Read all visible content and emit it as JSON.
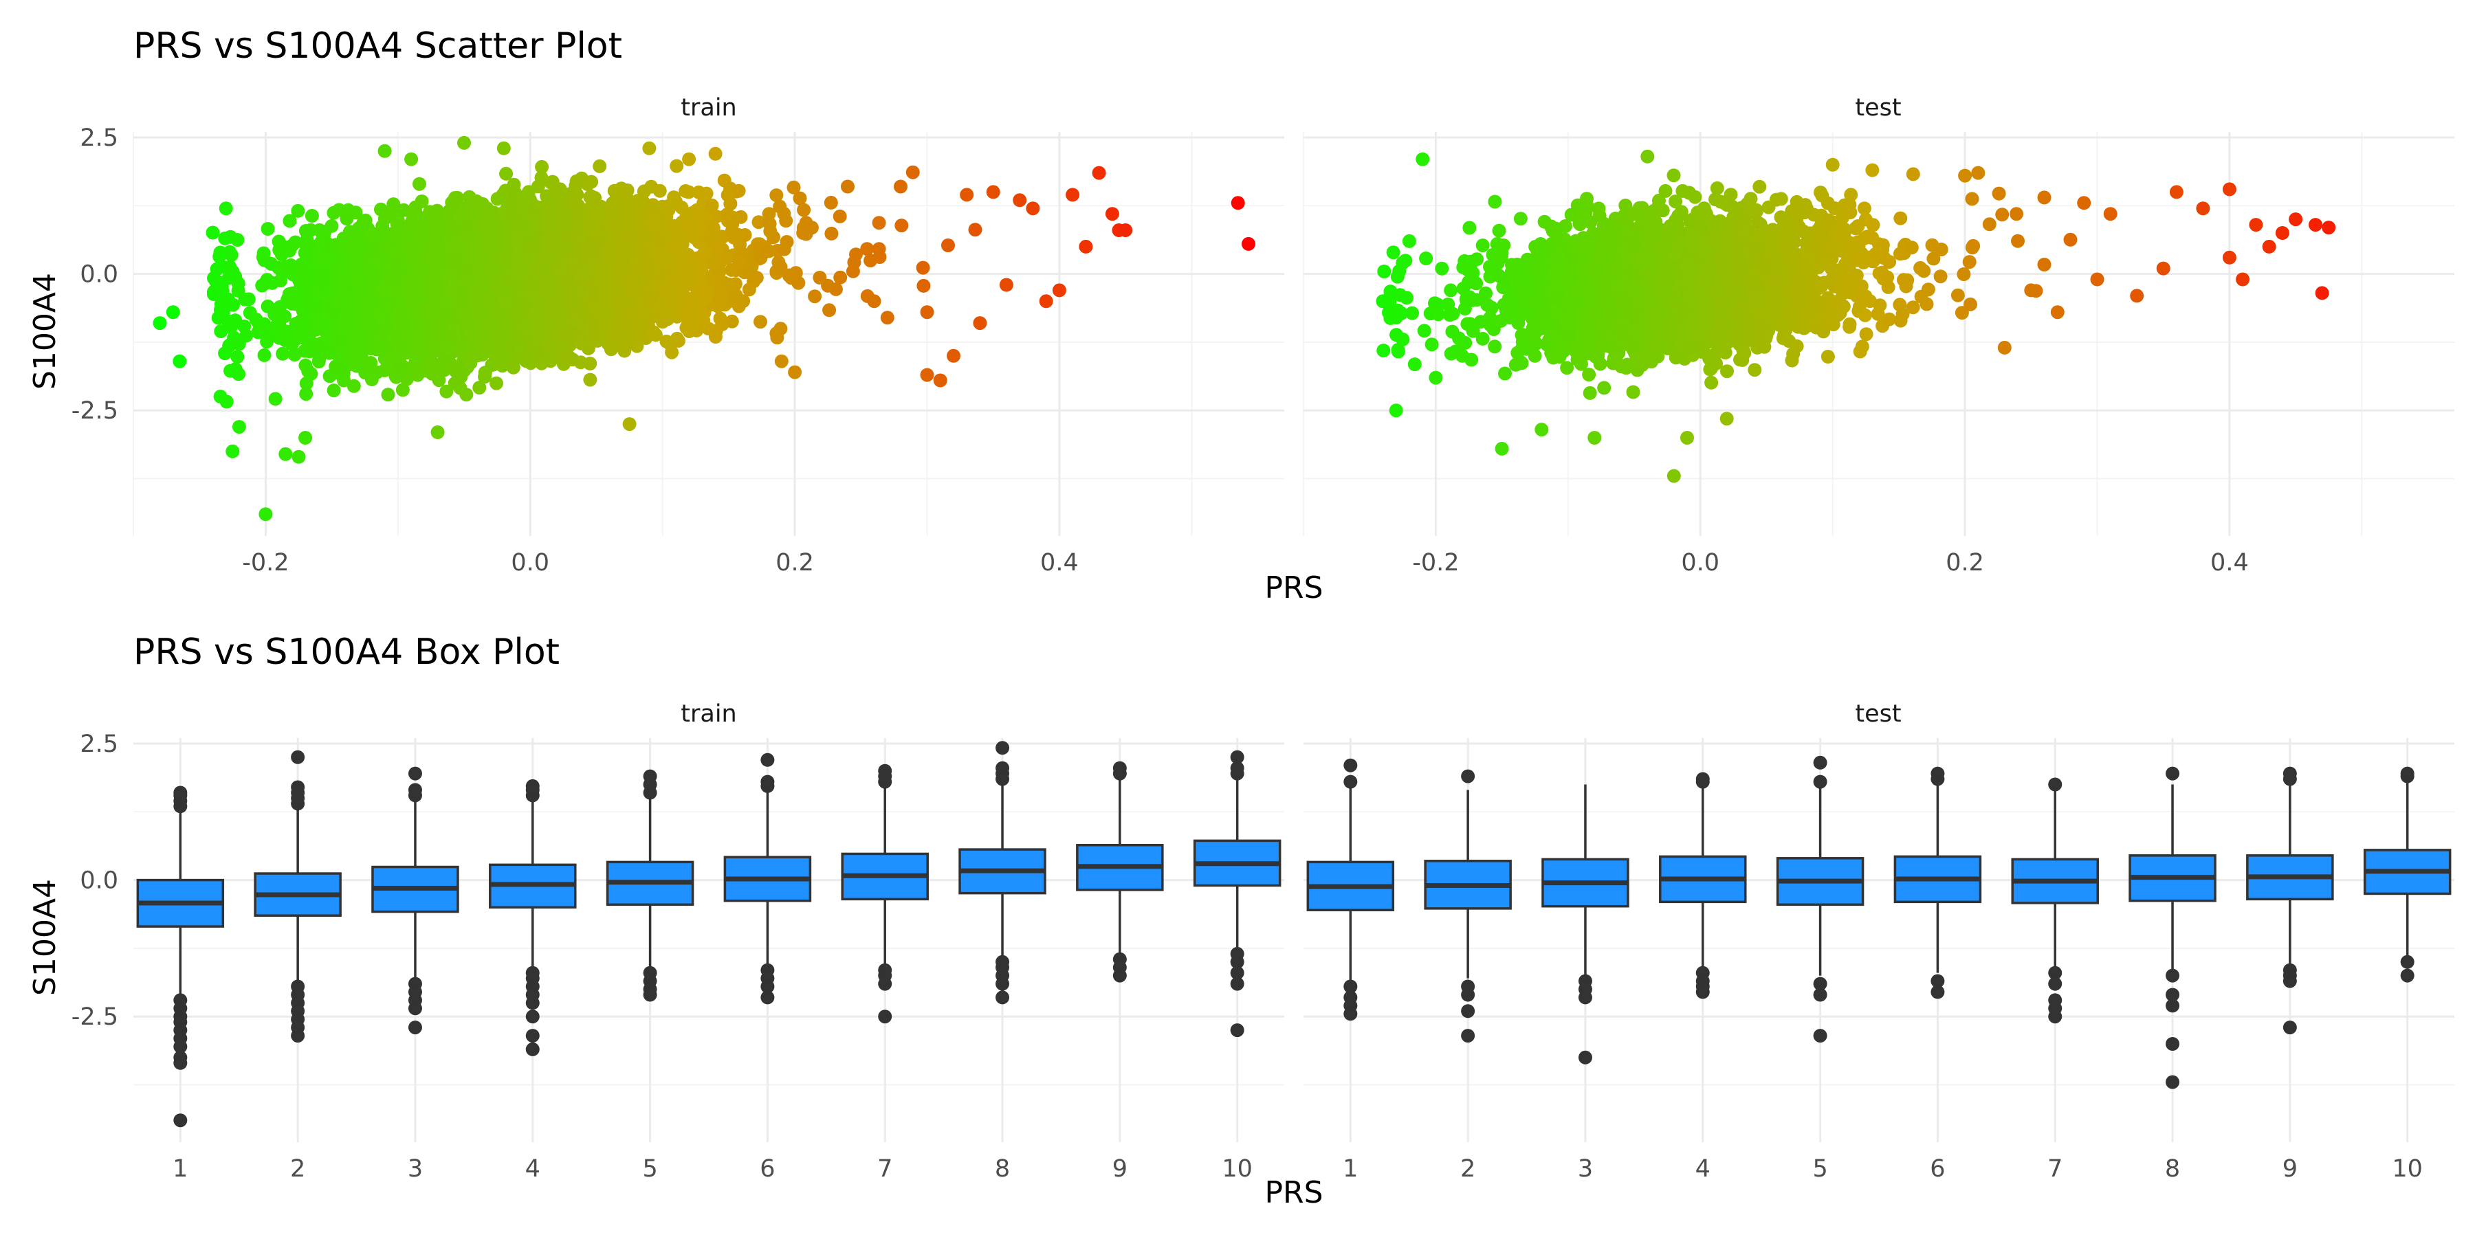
{
  "chart_data": [
    {
      "type": "scatter",
      "title": "PRS vs S100A4 Scatter Plot",
      "xlabel": "PRS",
      "ylabel": "S100A4",
      "facets": [
        {
          "name": "train",
          "xlim": [
            -0.3,
            0.57
          ],
          "ylim": [
            -4.8,
            2.6
          ],
          "xticks": [
            -0.2,
            0.0,
            0.2,
            0.4
          ],
          "xtick_labels": [
            "-0.2",
            "0.0",
            "0.2",
            "0.4"
          ],
          "yticks": [
            2.5,
            0.0,
            -2.5
          ],
          "ytick_labels": [
            "2.5",
            "0.0",
            "-2.5"
          ],
          "cloud": {
            "x_center": -0.02,
            "x_spread": 0.075,
            "y_base": -0.15,
            "slope": 2.2,
            "y_spread": 0.6,
            "count": 6500
          },
          "points": [
            {
              "x": -0.28,
              "y": -0.9
            },
            {
              "x": -0.27,
              "y": -0.7
            },
            {
              "x": -0.265,
              "y": -1.6
            },
            {
              "x": -0.23,
              "y": 1.2
            },
            {
              "x": -0.22,
              "y": -2.8
            },
            {
              "x": -0.225,
              "y": -3.25
            },
            {
              "x": -0.2,
              "y": -4.4
            },
            {
              "x": -0.185,
              "y": -3.3
            },
            {
              "x": -0.175,
              "y": -3.35
            },
            {
              "x": -0.17,
              "y": -3.0
            },
            {
              "x": -0.11,
              "y": 2.25
            },
            {
              "x": -0.09,
              "y": 2.1
            },
            {
              "x": -0.07,
              "y": -2.9
            },
            {
              "x": -0.05,
              "y": 2.4
            },
            {
              "x": -0.02,
              "y": 2.3
            },
            {
              "x": 0.075,
              "y": -2.75
            },
            {
              "x": 0.09,
              "y": 2.3
            },
            {
              "x": 0.12,
              "y": 2.1
            },
            {
              "x": 0.14,
              "y": 2.2
            },
            {
              "x": 0.19,
              "y": -1.6
            },
            {
              "x": 0.2,
              "y": -1.8
            },
            {
              "x": 0.3,
              "y": -1.85
            },
            {
              "x": 0.31,
              "y": -1.95
            },
            {
              "x": 0.32,
              "y": -1.5
            },
            {
              "x": 0.24,
              "y": 1.6
            },
            {
              "x": 0.28,
              "y": 1.6
            },
            {
              "x": 0.33,
              "y": 1.45
            },
            {
              "x": 0.35,
              "y": 1.5
            },
            {
              "x": 0.37,
              "y": 1.35
            },
            {
              "x": 0.38,
              "y": 1.2
            },
            {
              "x": 0.41,
              "y": 1.45
            },
            {
              "x": 0.43,
              "y": 1.85
            },
            {
              "x": 0.44,
              "y": 1.1
            },
            {
              "x": 0.445,
              "y": 0.8
            },
            {
              "x": 0.45,
              "y": 0.8
            },
            {
              "x": 0.42,
              "y": 0.5
            },
            {
              "x": 0.4,
              "y": -0.3
            },
            {
              "x": 0.39,
              "y": -0.5
            },
            {
              "x": 0.36,
              "y": -0.2
            },
            {
              "x": 0.34,
              "y": -0.9
            },
            {
              "x": 0.3,
              "y": -0.7
            },
            {
              "x": 0.27,
              "y": -0.8
            },
            {
              "x": 0.26,
              "y": -0.5
            },
            {
              "x": 0.535,
              "y": 1.3
            },
            {
              "x": 0.543,
              "y": 0.55
            }
          ]
        },
        {
          "name": "test",
          "xlim": [
            -0.3,
            0.57
          ],
          "ylim": [
            -4.8,
            2.6
          ],
          "xticks": [
            -0.2,
            0.0,
            0.2,
            0.4
          ],
          "xtick_labels": [
            "-0.2",
            "0.0",
            "0.2",
            "0.4"
          ],
          "yticks": [
            2.5,
            0.0,
            -2.5
          ],
          "ytick_labels": [
            "2.5",
            "0.0",
            "-2.5"
          ],
          "cloud": {
            "x_center": -0.02,
            "x_spread": 0.07,
            "y_base": -0.2,
            "slope": 2.0,
            "y_spread": 0.6,
            "count": 2800
          },
          "points": [
            {
              "x": -0.24,
              "y": -0.5
            },
            {
              "x": -0.23,
              "y": -0.8
            },
            {
              "x": -0.225,
              "y": -1.2
            },
            {
              "x": -0.22,
              "y": 0.6
            },
            {
              "x": -0.21,
              "y": 2.1
            },
            {
              "x": -0.23,
              "y": -2.5
            },
            {
              "x": -0.2,
              "y": -1.9
            },
            {
              "x": -0.18,
              "y": -1.5
            },
            {
              "x": -0.15,
              "y": -3.2
            },
            {
              "x": -0.12,
              "y": -2.85
            },
            {
              "x": -0.08,
              "y": -3.0
            },
            {
              "x": -0.04,
              "y": 2.15
            },
            {
              "x": -0.02,
              "y": -3.7
            },
            {
              "x": -0.01,
              "y": -3.0
            },
            {
              "x": 0.02,
              "y": -2.65
            },
            {
              "x": 0.1,
              "y": 2.0
            },
            {
              "x": 0.13,
              "y": 1.9
            },
            {
              "x": 0.2,
              "y": 1.8
            },
            {
              "x": 0.21,
              "y": 1.85
            },
            {
              "x": 0.23,
              "y": -1.35
            },
            {
              "x": 0.26,
              "y": 1.4
            },
            {
              "x": 0.29,
              "y": 1.3
            },
            {
              "x": 0.31,
              "y": 1.1
            },
            {
              "x": 0.36,
              "y": 1.5
            },
            {
              "x": 0.4,
              "y": 1.55
            },
            {
              "x": 0.38,
              "y": 1.2
            },
            {
              "x": 0.42,
              "y": 0.9
            },
            {
              "x": 0.43,
              "y": 0.5
            },
            {
              "x": 0.44,
              "y": 0.75
            },
            {
              "x": 0.45,
              "y": 1.0
            },
            {
              "x": 0.465,
              "y": 0.9
            },
            {
              "x": 0.475,
              "y": 0.85
            },
            {
              "x": 0.47,
              "y": -0.35
            },
            {
              "x": 0.41,
              "y": -0.1
            },
            {
              "x": 0.4,
              "y": 0.3
            },
            {
              "x": 0.35,
              "y": 0.1
            },
            {
              "x": 0.33,
              "y": -0.4
            },
            {
              "x": 0.3,
              "y": -0.1
            },
            {
              "x": 0.27,
              "y": -0.7
            },
            {
              "x": 0.25,
              "y": -0.3
            }
          ]
        }
      ],
      "color_scale": [
        "#00ff00",
        "#c8a800",
        "#ff0000"
      ]
    },
    {
      "type": "box",
      "title": "PRS vs S100A4 Box Plot",
      "xlabel": "PRS",
      "ylabel": "S100A4",
      "box_color": "#1e90ff",
      "categories": [
        "1",
        "2",
        "3",
        "4",
        "5",
        "6",
        "7",
        "8",
        "9",
        "10"
      ],
      "ylim": [
        -4.8,
        2.6
      ],
      "yticks": [
        2.5,
        0.0,
        -2.5
      ],
      "ytick_labels": [
        "2.5",
        "0.0",
        "-2.5"
      ],
      "facets": [
        {
          "name": "train",
          "boxes": [
            {
              "q1": -0.85,
              "median": -0.42,
              "q3": 0.0,
              "whisker_low": -2.1,
              "whisker_high": 1.25,
              "outliers": [
                1.35,
                1.45,
                1.55,
                1.6,
                -2.2,
                -2.35,
                -2.5,
                -2.6,
                -2.75,
                -2.9,
                -3.05,
                -3.25,
                -3.35,
                -4.4
              ]
            },
            {
              "q1": -0.65,
              "median": -0.27,
              "q3": 0.12,
              "whisker_low": -1.85,
              "whisker_high": 1.3,
              "outliers": [
                1.4,
                1.5,
                1.6,
                1.7,
                2.25,
                -1.95,
                -2.1,
                -2.25,
                -2.4,
                -2.55,
                -2.7,
                -2.85
              ]
            },
            {
              "q1": -0.58,
              "median": -0.15,
              "q3": 0.24,
              "whisker_low": -1.8,
              "whisker_high": 1.45,
              "outliers": [
                1.55,
                1.65,
                1.95,
                -1.9,
                -2.05,
                -2.2,
                -2.35,
                -2.7
              ]
            },
            {
              "q1": -0.5,
              "median": -0.08,
              "q3": 0.28,
              "whisker_low": -1.6,
              "whisker_high": 1.45,
              "outliers": [
                1.55,
                1.65,
                1.72,
                -1.7,
                -1.8,
                -1.95,
                -2.1,
                -2.25,
                -2.5,
                -2.85,
                -3.1
              ]
            },
            {
              "q1": -0.45,
              "median": -0.04,
              "q3": 0.33,
              "whisker_low": -1.6,
              "whisker_high": 1.5,
              "outliers": [
                1.6,
                1.75,
                1.9,
                -1.7,
                -1.85,
                -2.0,
                -2.1
              ]
            },
            {
              "q1": -0.38,
              "median": 0.02,
              "q3": 0.42,
              "whisker_low": -1.55,
              "whisker_high": 1.6,
              "outliers": [
                1.72,
                1.8,
                2.2,
                -1.65,
                -1.8,
                -1.95,
                -2.15
              ]
            },
            {
              "q1": -0.35,
              "median": 0.08,
              "q3": 0.48,
              "whisker_low": -1.55,
              "whisker_high": 1.7,
              "outliers": [
                1.8,
                1.9,
                2.0,
                -1.65,
                -1.75,
                -1.9,
                -2.5
              ]
            },
            {
              "q1": -0.24,
              "median": 0.17,
              "q3": 0.56,
              "whisker_low": -1.4,
              "whisker_high": 1.75,
              "outliers": [
                1.85,
                1.95,
                2.05,
                2.42,
                -1.5,
                -1.6,
                -1.75,
                -1.9,
                -2.15
              ]
            },
            {
              "q1": -0.18,
              "median": 0.25,
              "q3": 0.64,
              "whisker_low": -1.35,
              "whisker_high": 1.85,
              "outliers": [
                1.95,
                2.05,
                -1.45,
                -1.6,
                -1.75
              ]
            },
            {
              "q1": -0.1,
              "median": 0.3,
              "q3": 0.72,
              "whisker_low": -1.25,
              "whisker_high": 1.85,
              "outliers": [
                1.95,
                2.05,
                2.25,
                -1.35,
                -1.5,
                -1.7,
                -1.9,
                -2.75
              ]
            }
          ]
        },
        {
          "name": "test",
          "boxes": [
            {
              "q1": -0.55,
              "median": -0.12,
              "q3": 0.33,
              "whisker_low": -1.85,
              "whisker_high": 1.7,
              "outliers": [
                1.8,
                2.1,
                -1.95,
                -2.15,
                -2.3,
                -2.45
              ]
            },
            {
              "q1": -0.52,
              "median": -0.1,
              "q3": 0.35,
              "whisker_low": -1.8,
              "whisker_high": 1.65,
              "outliers": [
                1.9,
                -1.95,
                -2.1,
                -2.4,
                -2.85
              ]
            },
            {
              "q1": -0.48,
              "median": -0.05,
              "q3": 0.38,
              "whisker_low": -1.75,
              "whisker_high": 1.75,
              "outliers": [
                -1.85,
                -2.0,
                -2.15,
                -3.25
              ]
            },
            {
              "q1": -0.4,
              "median": 0.02,
              "q3": 0.43,
              "whisker_low": -1.6,
              "whisker_high": 1.7,
              "outliers": [
                1.8,
                1.85,
                -1.7,
                -1.85,
                -1.95,
                -2.05
              ]
            },
            {
              "q1": -0.45,
              "median": -0.02,
              "q3": 0.4,
              "whisker_low": -1.75,
              "whisker_high": 1.7,
              "outliers": [
                1.8,
                2.15,
                -1.9,
                -2.1,
                -2.85
              ]
            },
            {
              "q1": -0.4,
              "median": 0.02,
              "q3": 0.43,
              "whisker_low": -1.7,
              "whisker_high": 1.75,
              "outliers": [
                1.85,
                1.95,
                -1.85,
                -2.05
              ]
            },
            {
              "q1": -0.42,
              "median": -0.02,
              "q3": 0.38,
              "whisker_low": -1.6,
              "whisker_high": 1.65,
              "outliers": [
                1.75,
                -1.7,
                -1.9,
                -2.2,
                -2.35,
                -2.5
              ]
            },
            {
              "q1": -0.38,
              "median": 0.05,
              "q3": 0.45,
              "whisker_low": -1.65,
              "whisker_high": 1.75,
              "outliers": [
                1.95,
                -1.75,
                -2.1,
                -2.3,
                -3.0,
                -3.7
              ]
            },
            {
              "q1": -0.35,
              "median": 0.06,
              "q3": 0.45,
              "whisker_low": -1.55,
              "whisker_high": 1.75,
              "outliers": [
                1.85,
                1.95,
                -1.65,
                -1.75,
                -1.85,
                -2.7
              ]
            },
            {
              "q1": -0.25,
              "median": 0.16,
              "q3": 0.55,
              "whisker_low": -1.4,
              "whisker_high": 1.8,
              "outliers": [
                1.9,
                1.95,
                -1.5,
                -1.75
              ]
            }
          ]
        }
      ]
    }
  ]
}
